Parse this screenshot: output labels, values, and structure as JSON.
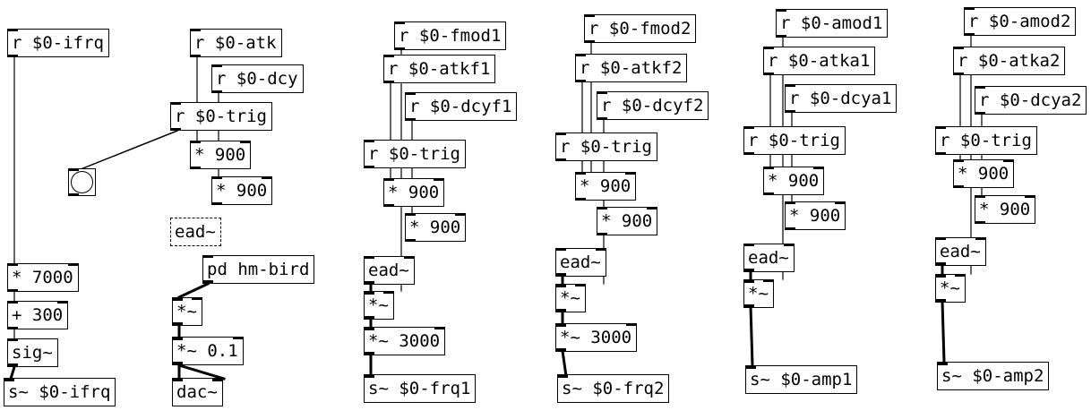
{
  "patch": {
    "objects": [
      {
        "id": "r-ifrq",
        "text": "r $0-ifrq"
      },
      {
        "id": "r-atk",
        "text": "r $0-atk"
      },
      {
        "id": "r-dcy",
        "text": "r $0-dcy"
      },
      {
        "id": "r-trig-1",
        "text": "r $0-trig"
      },
      {
        "id": "mul900-atk",
        "text": "* 900"
      },
      {
        "id": "mul900-dcy",
        "text": "* 900"
      },
      {
        "id": "ead-1",
        "text": "ead~"
      },
      {
        "id": "mul7000",
        "text": "* 7000"
      },
      {
        "id": "add300",
        "text": "+ 300"
      },
      {
        "id": "sig",
        "text": "sig~"
      },
      {
        "id": "s-ifrq",
        "text": "s~ $0-ifrq"
      },
      {
        "id": "pd-hm-bird",
        "text": "pd hm-bird"
      },
      {
        "id": "mul-sig-1",
        "text": "*~"
      },
      {
        "id": "mul01",
        "text": "*~ 0.1"
      },
      {
        "id": "dac",
        "text": "dac~"
      },
      {
        "id": "r-fmod1",
        "text": "r $0-fmod1"
      },
      {
        "id": "r-atkf1",
        "text": "r $0-atkf1"
      },
      {
        "id": "r-dcyf1",
        "text": "r $0-dcyf1"
      },
      {
        "id": "r-trig-2",
        "text": "r $0-trig"
      },
      {
        "id": "mul900-atkf1",
        "text": "* 900"
      },
      {
        "id": "mul900-dcyf1",
        "text": "* 900"
      },
      {
        "id": "ead-2",
        "text": "ead~"
      },
      {
        "id": "mul-sig-2",
        "text": "*~"
      },
      {
        "id": "mul3000-1",
        "text": "*~ 3000"
      },
      {
        "id": "s-frq1",
        "text": "s~ $0-frq1"
      },
      {
        "id": "r-fmod2",
        "text": "r $0-fmod2"
      },
      {
        "id": "r-atkf2",
        "text": "r $0-atkf2"
      },
      {
        "id": "r-dcyf2",
        "text": "r $0-dcyf2"
      },
      {
        "id": "r-trig-3",
        "text": "r $0-trig"
      },
      {
        "id": "mul900-atkf2",
        "text": "* 900"
      },
      {
        "id": "mul900-dcyf2",
        "text": "* 900"
      },
      {
        "id": "ead-3",
        "text": "ead~"
      },
      {
        "id": "mul-sig-3",
        "text": "*~"
      },
      {
        "id": "mul3000-2",
        "text": "*~ 3000"
      },
      {
        "id": "s-frq2",
        "text": "s~ $0-frq2"
      },
      {
        "id": "r-amod1",
        "text": "r $0-amod1"
      },
      {
        "id": "r-atka1",
        "text": "r $0-atka1"
      },
      {
        "id": "r-dcya1",
        "text": "r $0-dcya1"
      },
      {
        "id": "r-trig-4",
        "text": "r $0-trig"
      },
      {
        "id": "mul900-atka1",
        "text": "* 900"
      },
      {
        "id": "mul900-dcya1",
        "text": "* 900"
      },
      {
        "id": "ead-4",
        "text": "ead~"
      },
      {
        "id": "mul-sig-4",
        "text": "*~"
      },
      {
        "id": "s-amp1",
        "text": "s~ $0-amp1"
      },
      {
        "id": "r-amod2",
        "text": "r $0-amod2"
      },
      {
        "id": "r-atka2",
        "text": "r $0-atka2"
      },
      {
        "id": "r-dcya2",
        "text": "r $0-dcya2"
      },
      {
        "id": "r-trig-5",
        "text": "r $0-trig"
      },
      {
        "id": "mul900-atka2",
        "text": "* 900"
      },
      {
        "id": "mul900-dcya2",
        "text": "* 900"
      },
      {
        "id": "ead-5",
        "text": "ead~"
      },
      {
        "id": "mul-sig-5",
        "text": "*~"
      },
      {
        "id": "s-amp2",
        "text": "s~ $0-amp2"
      }
    ]
  }
}
